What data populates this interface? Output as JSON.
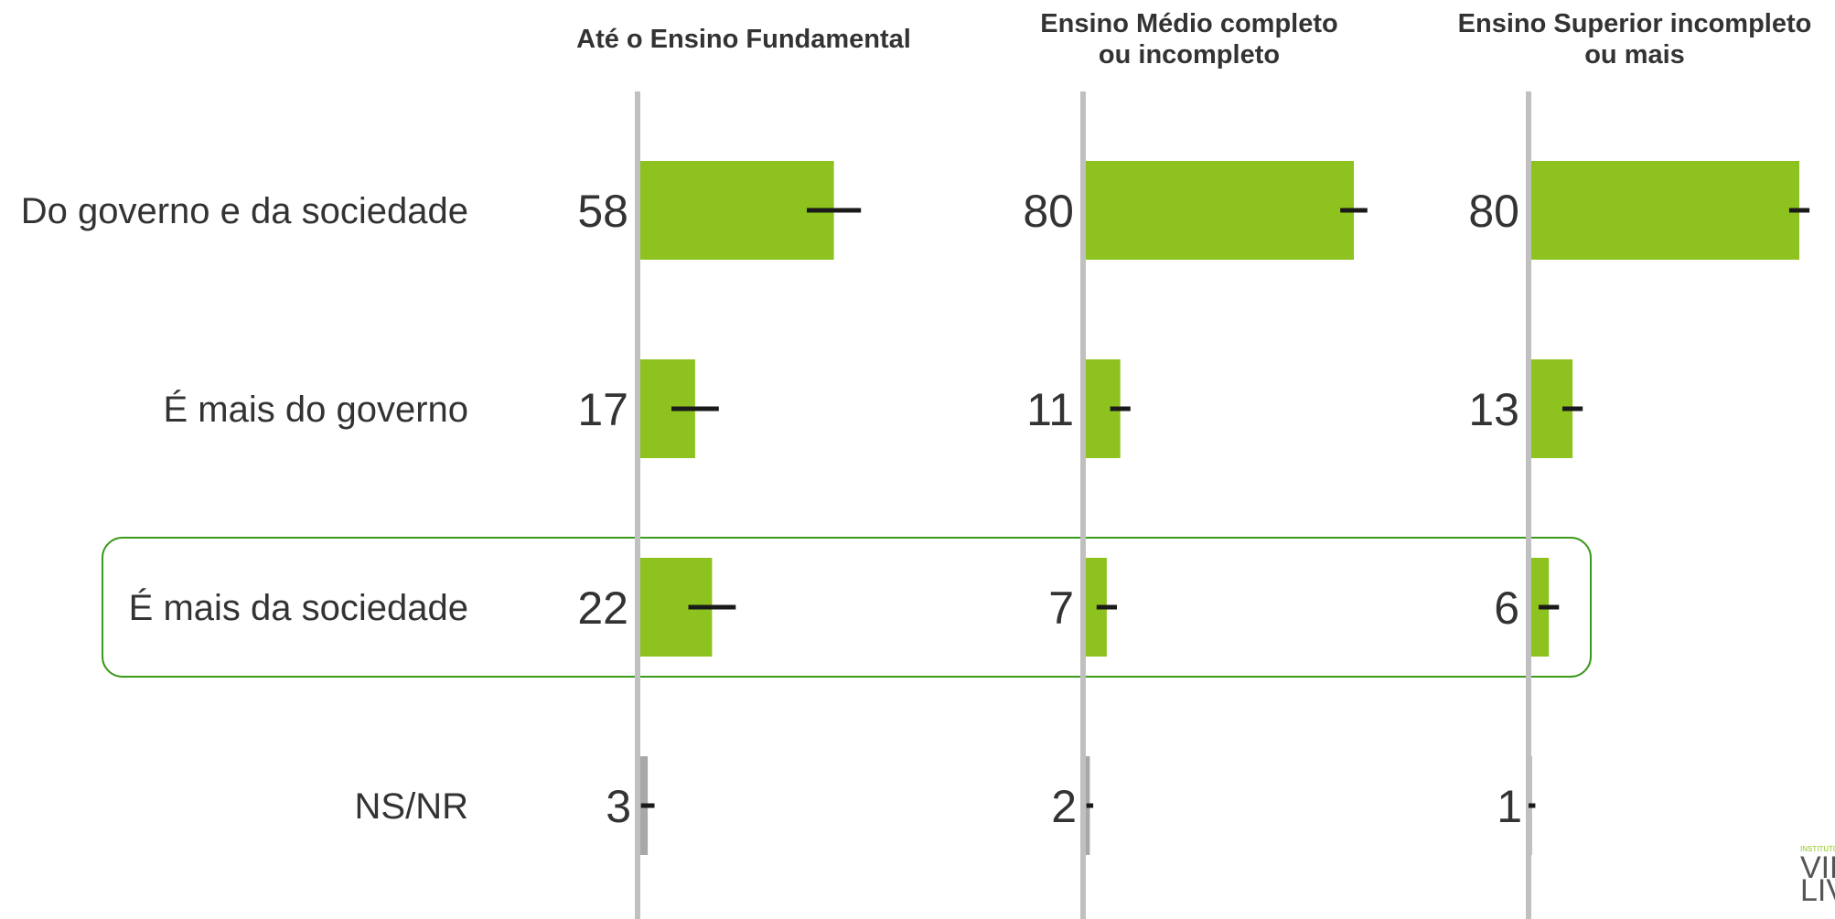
{
  "chart_data": {
    "type": "bar",
    "orientation": "horizontal",
    "panels": [
      "Até o Ensino Fundamental",
      "Ensino Médio completo ou incompleto",
      "Ensino Superior incompleto ou mais"
    ],
    "panel_title_lines": [
      [
        "Até o Ensino Fundamental"
      ],
      [
        "Ensino Médio completo",
        "ou incompleto"
      ],
      [
        "Ensino Superior incompleto",
        "ou mais"
      ]
    ],
    "categories": [
      "Do governo e da sociedade",
      "É mais do governo",
      "É mais da sociedade",
      "NS/NR"
    ],
    "values": [
      [
        58,
        17,
        22,
        3
      ],
      [
        80,
        11,
        7,
        2
      ],
      [
        80,
        13,
        6,
        1
      ]
    ],
    "error_margin": [
      [
        8,
        7,
        7,
        2
      ],
      [
        4,
        3,
        3,
        1
      ],
      [
        3,
        3,
        3,
        1
      ]
    ],
    "highlighted_category": "É mais da sociedade",
    "xlim": [
      0,
      100
    ],
    "colors": {
      "bar": "#8dc21f",
      "bar_nsnr": "#a8a8a8",
      "axis": "#c0c0c0",
      "highlight_border": "#3a9a1a",
      "error_bar": "#1a1a1a"
    }
  },
  "logo": {
    "small_text": "INSTITUTO",
    "line1": "VID",
    "line2": "LIV"
  }
}
